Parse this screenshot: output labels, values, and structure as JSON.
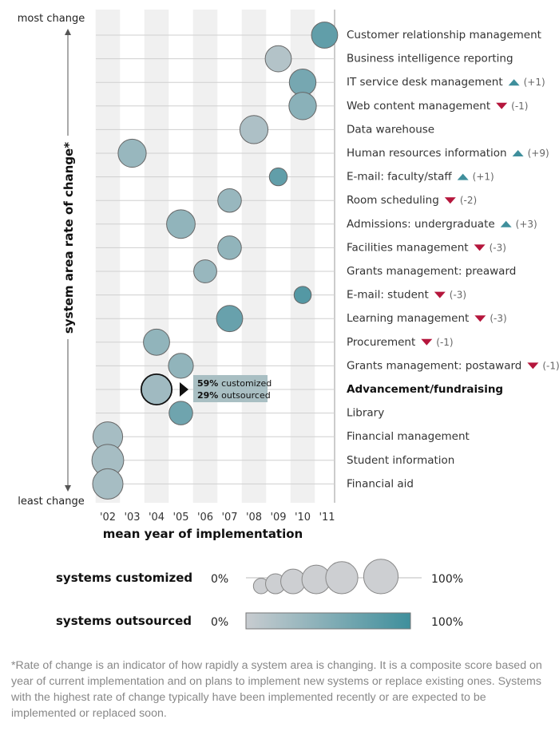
{
  "chart_data": {
    "type": "scatter",
    "ylabel": "system area rate of change*",
    "y_top_label": "most change",
    "y_bottom_label": "least change",
    "xlabel": "mean year of implementation",
    "x_ticks": [
      "'02",
      "'03",
      "'04",
      "'05",
      "'06",
      "'07",
      "'08",
      "'09",
      "'10",
      "'11"
    ],
    "xlim": [
      2002,
      2011
    ],
    "colors": {
      "low_outsourced": "#c8ccd0",
      "high_outsourced": "#3f8f9c",
      "up": "#3f8f9c",
      "down": "#b5163c"
    },
    "systems": [
      {
        "name": "Customer relationship management",
        "year": 2010.9,
        "customized": 0.4,
        "outsourced": 0.75,
        "rank_change": ""
      },
      {
        "name": "Business intelligence reporting",
        "year": 2009.0,
        "customized": 0.4,
        "outsourced": 0.15,
        "rank_change": ""
      },
      {
        "name": "IT service desk management",
        "year": 2010.0,
        "customized": 0.42,
        "outsourced": 0.6,
        "rank_change": "(+1)",
        "direction": "up"
      },
      {
        "name": "Web content management",
        "year": 2010.0,
        "customized": 0.45,
        "outsourced": 0.45,
        "rank_change": "(-1)",
        "direction": "down"
      },
      {
        "name": "Data warehouse",
        "year": 2008.0,
        "customized": 0.48,
        "outsourced": 0.2,
        "rank_change": ""
      },
      {
        "name": "Human resources information",
        "year": 2003.0,
        "customized": 0.48,
        "outsourced": 0.35,
        "rank_change": "(+9)",
        "direction": "up"
      },
      {
        "name": "E-mail: faculty/staff",
        "year": 2009.0,
        "customized": 0.12,
        "outsourced": 0.75,
        "rank_change": "(+1)",
        "direction": "up"
      },
      {
        "name": "Room scheduling",
        "year": 2007.0,
        "customized": 0.3,
        "outsourced": 0.35,
        "rank_change": "(-2)",
        "direction": "down"
      },
      {
        "name": "Admissions: undergraduate",
        "year": 2005.0,
        "customized": 0.5,
        "outsourced": 0.4,
        "rank_change": "(+3)",
        "direction": "up"
      },
      {
        "name": "Facilities management",
        "year": 2007.0,
        "customized": 0.3,
        "outsourced": 0.4,
        "rank_change": "(-3)",
        "direction": "down"
      },
      {
        "name": "Grants management: preaward",
        "year": 2006.0,
        "customized": 0.28,
        "outsourced": 0.35,
        "rank_change": ""
      },
      {
        "name": "E-mail: student",
        "year": 2010.0,
        "customized": 0.1,
        "outsourced": 0.85,
        "rank_change": "(-3)",
        "direction": "down"
      },
      {
        "name": "Learning management",
        "year": 2007.0,
        "customized": 0.4,
        "outsourced": 0.7,
        "rank_change": "(-3)",
        "direction": "down"
      },
      {
        "name": "Procurement",
        "year": 2004.0,
        "customized": 0.4,
        "outsourced": 0.4,
        "rank_change": "(-1)",
        "direction": "down"
      },
      {
        "name": "Grants management: postaward",
        "year": 2005.0,
        "customized": 0.35,
        "outsourced": 0.4,
        "rank_change": "(-1)",
        "direction": "down"
      },
      {
        "name": "Advancement/fundraising",
        "year": 2004.0,
        "customized": 0.59,
        "outsourced": 0.29,
        "rank_change": "",
        "highlight": true
      },
      {
        "name": "Library",
        "year": 2005.0,
        "customized": 0.3,
        "outsourced": 0.65,
        "rank_change": ""
      },
      {
        "name": "Financial management",
        "year": 2002.0,
        "customized": 0.55,
        "outsourced": 0.25,
        "rank_change": ""
      },
      {
        "name": "Student information",
        "year": 2002.0,
        "customized": 0.65,
        "outsourced": 0.25,
        "rank_change": ""
      },
      {
        "name": "Financial aid",
        "year": 2002.0,
        "customized": 0.58,
        "outsourced": 0.25,
        "rank_change": ""
      }
    ],
    "callout": {
      "customized": "59% customized",
      "outsourced": "29% outsourced"
    },
    "legend": {
      "size_title": "systems customized",
      "color_title": "systems outsourced",
      "min_label": "0%",
      "max_label": "100%",
      "size_steps": [
        0.1,
        0.25,
        0.45,
        0.65,
        0.85,
        1.0
      ]
    }
  },
  "footnote": "*Rate of change is an indicator of how rapidly a system area is changing. It is a composite score based on year of current implementation and on plans to implement new systems or replace existing ones. Systems with the highest rate of change typically have been implemented recently or are expected to be implemented or replaced soon."
}
